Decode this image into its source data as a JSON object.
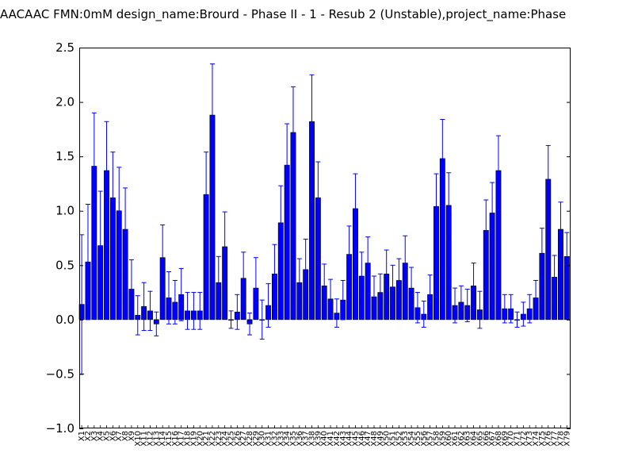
{
  "chart_data": {
    "type": "bar",
    "title": "AACAAC  FMN:0mM  design_name:Brourd - Phase II - 1 - Resub 2 (Unstable),project_name:Phase",
    "xlabel": "",
    "ylabel": "",
    "ylim": [
      -1.0,
      2.5
    ],
    "yticks": [
      "−1.0",
      "−0.5",
      "0.0",
      "0.5",
      "1.0",
      "1.5",
      "2.0",
      "2.5"
    ],
    "grid": false,
    "bar_color": "#0000ff",
    "errorbar_color": "#0000ff",
    "categories": [
      "X1",
      "X2",
      "X3",
      "X4",
      "X5",
      "X6",
      "X7",
      "X8",
      "X9",
      "X10",
      "X11",
      "X12",
      "X13",
      "X14",
      "X15",
      "X16",
      "X17",
      "X18",
      "X19",
      "X20",
      "X21",
      "X22",
      "X23",
      "X24",
      "X25",
      "X26",
      "X27",
      "X28",
      "X29",
      "X30",
      "X31",
      "X32",
      "X33",
      "X34",
      "X35",
      "X36",
      "X37",
      "X38",
      "X39",
      "X40",
      "X41",
      "X42",
      "X43",
      "X44",
      "X45",
      "X46",
      "X47",
      "X48",
      "X49",
      "X50",
      "X51",
      "X52",
      "X53",
      "X54",
      "X55",
      "X56",
      "X57",
      "X58",
      "X59",
      "X60",
      "X61",
      "X62",
      "X63",
      "X64",
      "X65",
      "X66",
      "X67",
      "X68",
      "X69",
      "X70",
      "X71",
      "X72",
      "X73",
      "X74",
      "X75",
      "X76",
      "X77",
      "X78",
      "X79"
    ],
    "values": [
      0.14,
      0.53,
      1.41,
      0.68,
      1.37,
      1.12,
      1.0,
      0.83,
      0.28,
      0.04,
      0.12,
      0.08,
      -0.04,
      0.57,
      0.2,
      0.16,
      0.23,
      0.08,
      0.08,
      0.08,
      1.15,
      1.88,
      0.34,
      0.67,
      0.0,
      0.07,
      0.38,
      -0.04,
      0.29,
      0.0,
      0.13,
      0.42,
      0.89,
      1.42,
      1.72,
      0.34,
      0.46,
      1.82,
      1.12,
      0.31,
      0.19,
      0.06,
      0.18,
      0.6,
      1.02,
      0.4,
      0.52,
      0.21,
      0.25,
      0.42,
      0.3,
      0.36,
      0.52,
      0.29,
      0.11,
      0.05,
      0.23,
      1.04,
      1.48,
      1.05,
      0.13,
      0.16,
      0.13,
      0.31,
      0.09,
      0.82,
      0.98,
      1.37,
      0.1,
      0.1,
      0.0,
      0.05,
      0.1,
      0.2,
      0.61,
      1.29,
      0.39,
      0.83,
      0.58
    ],
    "errors": [
      0.64,
      0.53,
      0.49,
      0.5,
      0.45,
      0.42,
      0.4,
      0.38,
      0.27,
      0.18,
      0.22,
      0.18,
      0.11,
      0.3,
      0.24,
      0.2,
      0.24,
      0.17,
      0.17,
      0.17,
      0.39,
      0.47,
      0.24,
      0.32,
      0.08,
      0.16,
      0.24,
      0.1,
      0.28,
      0.18,
      0.2,
      0.27,
      0.34,
      0.38,
      0.42,
      0.22,
      0.28,
      0.43,
      0.33,
      0.2,
      0.18,
      0.13,
      0.18,
      0.26,
      0.32,
      0.22,
      0.24,
      0.19,
      0.17,
      0.22,
      0.2,
      0.2,
      0.25,
      0.19,
      0.14,
      0.12,
      0.18,
      0.3,
      0.36,
      0.3,
      0.16,
      0.15,
      0.15,
      0.21,
      0.17,
      0.28,
      0.28,
      0.32,
      0.13,
      0.13,
      0.07,
      0.11,
      0.13,
      0.16,
      0.23,
      0.31,
      0.2,
      0.25,
      0.22
    ]
  }
}
